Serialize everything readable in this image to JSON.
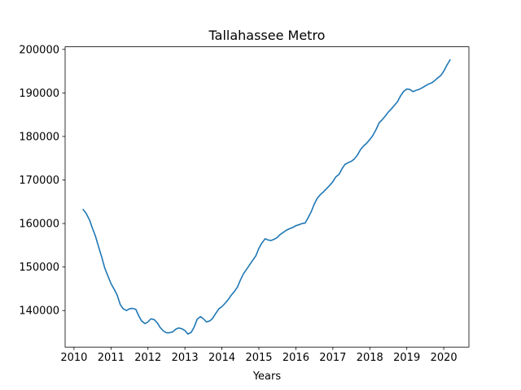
{
  "chart_data": {
    "type": "line",
    "title": "Tallahassee Metro",
    "xlabel": "Years",
    "ylabel": "",
    "xlim": [
      2009.76,
      2020.68
    ],
    "ylim": [
      131600,
      200600
    ],
    "x_ticks": [
      2010,
      2011,
      2012,
      2013,
      2014,
      2015,
      2016,
      2017,
      2018,
      2019,
      2020
    ],
    "x_tick_labels": [
      "2010",
      "2011",
      "2012",
      "2013",
      "2014",
      "2015",
      "2016",
      "2017",
      "2018",
      "2019",
      "2020"
    ],
    "y_ticks": [
      140000,
      150000,
      160000,
      170000,
      180000,
      190000,
      200000
    ],
    "y_tick_labels": [
      "140000",
      "150000",
      "160000",
      "170000",
      "180000",
      "190000",
      "200000"
    ],
    "grid": false,
    "legend": "none",
    "color": "#1f77b4",
    "series": [
      {
        "x": [
          2010.25,
          2010.33,
          2010.42,
          2010.5,
          2010.58,
          2010.67,
          2010.75,
          2010.83,
          2010.92,
          2011.0,
          2011.08,
          2011.17,
          2011.25,
          2011.33,
          2011.42,
          2011.5,
          2011.58,
          2011.67,
          2011.75,
          2011.83,
          2011.92,
          2012.0,
          2012.08,
          2012.17,
          2012.25,
          2012.33,
          2012.42,
          2012.5,
          2012.58,
          2012.67,
          2012.75,
          2012.83,
          2012.92,
          2013.0,
          2013.08,
          2013.17,
          2013.25,
          2013.33,
          2013.42,
          2013.5,
          2013.58,
          2013.67,
          2013.75,
          2013.83,
          2013.92,
          2014.0,
          2014.08,
          2014.17,
          2014.25,
          2014.33,
          2014.42,
          2014.5,
          2014.58,
          2014.67,
          2014.75,
          2014.83,
          2014.92,
          2015.0,
          2015.08,
          2015.17,
          2015.25,
          2015.33,
          2015.42,
          2015.5,
          2015.58,
          2015.67,
          2015.75,
          2015.83,
          2015.92,
          2016.0,
          2016.08,
          2016.17,
          2016.25,
          2016.33,
          2016.42,
          2016.5,
          2016.58,
          2016.67,
          2016.75,
          2016.83,
          2016.92,
          2017.0,
          2017.08,
          2017.17,
          2017.25,
          2017.33,
          2017.42,
          2017.5,
          2017.58,
          2017.67,
          2017.75,
          2017.83,
          2017.92,
          2018.0,
          2018.08,
          2018.17,
          2018.25,
          2018.33,
          2018.42,
          2018.5,
          2018.58,
          2018.67,
          2018.75,
          2018.83,
          2018.92,
          2019.0,
          2019.08,
          2019.17,
          2019.25,
          2019.33,
          2019.42,
          2019.5,
          2019.58,
          2019.67,
          2019.75,
          2019.83,
          2019.92,
          2020.0,
          2020.08,
          2020.17
        ],
        "values": [
          163200,
          162300,
          160800,
          158900,
          157100,
          154500,
          152300,
          149800,
          147900,
          146200,
          145000,
          143500,
          141400,
          140400,
          140000,
          140400,
          140500,
          140300,
          138800,
          137600,
          137000,
          137400,
          138100,
          137900,
          137200,
          136100,
          135300,
          134900,
          134900,
          135100,
          135700,
          136000,
          135800,
          135400,
          134600,
          135000,
          136200,
          138000,
          138600,
          138100,
          137400,
          137600,
          138200,
          139300,
          140400,
          140900,
          141600,
          142500,
          143500,
          144300,
          145400,
          147000,
          148400,
          149500,
          150500,
          151500,
          152600,
          154300,
          155500,
          156500,
          156200,
          156100,
          156400,
          156800,
          157500,
          158000,
          158500,
          158800,
          159100,
          159500,
          159700,
          160000,
          160100,
          161300,
          162800,
          164500,
          165800,
          166700,
          167300,
          168000,
          168800,
          169600,
          170700,
          171300,
          172600,
          173600,
          174000,
          174300,
          174800,
          175800,
          177000,
          177800,
          178500,
          179300,
          180200,
          181600,
          183100,
          183800,
          184700,
          185600,
          186300,
          187200,
          188000,
          189300,
          190400,
          190900,
          190800,
          190300,
          190600,
          190800,
          191200,
          191600,
          192000,
          192300,
          192800,
          193400,
          194000,
          195000,
          196300,
          197600
        ]
      }
    ]
  }
}
